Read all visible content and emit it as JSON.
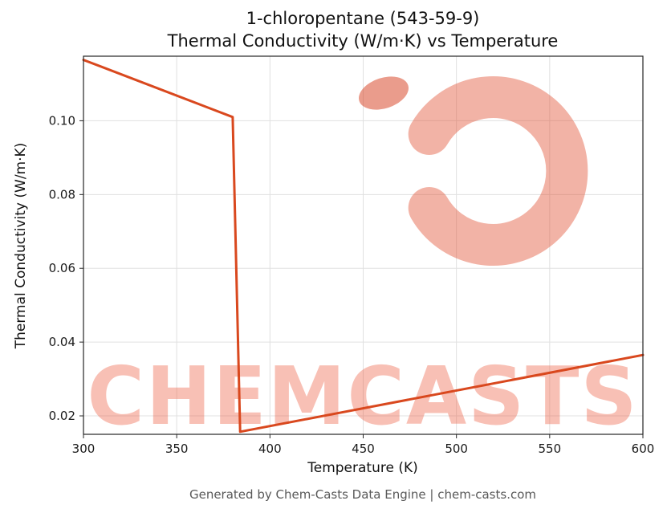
{
  "chart_data": {
    "type": "line",
    "title": "1-chloropentane (543-59-9)",
    "subtitle": "Thermal Conductivity (W/m·K) vs Temperature",
    "xlabel": "Temperature (K)",
    "ylabel": "Thermal Conductivity (W/m·K)",
    "xlim": [
      300,
      600
    ],
    "ylim": [
      0.015,
      0.1175
    ],
    "xticks": [
      300,
      350,
      400,
      450,
      500,
      550,
      600
    ],
    "xtick_labels": [
      "300",
      "350",
      "400",
      "450",
      "500",
      "550",
      "600"
    ],
    "yticks": [
      0.02,
      0.04,
      0.06,
      0.08,
      0.1
    ],
    "ytick_labels": [
      "0.02",
      "0.04",
      "0.06",
      "0.08",
      "0.10"
    ],
    "grid": true,
    "legend": "none",
    "line_color": "#d9481e",
    "series": [
      {
        "name": "thermal-conductivity",
        "points": [
          [
            300,
            0.1165
          ],
          [
            380,
            0.101
          ],
          [
            384,
            0.0157
          ],
          [
            600,
            0.0365
          ]
        ]
      }
    ]
  },
  "watermark": {
    "text": "CHEMCASTS",
    "text_color": "#ec5a3c",
    "logo_color": "#e04a2c"
  },
  "footer": {
    "text": "Generated by Chem-Casts Data Engine | chem-casts.com"
  }
}
